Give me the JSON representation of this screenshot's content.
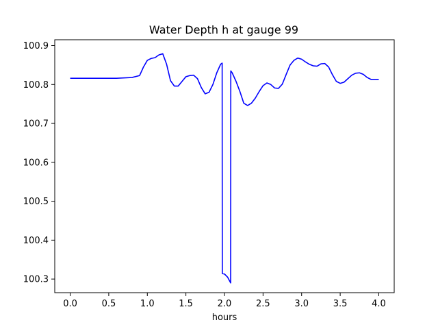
{
  "chart_data": {
    "type": "line",
    "title": "Water Depth h at gauge 99",
    "xlabel": "hours",
    "ylabel": "",
    "xlim": [
      -0.2,
      4.2
    ],
    "ylim": [
      100.265,
      100.915
    ],
    "xticks": [
      0.0,
      0.5,
      1.0,
      1.5,
      2.0,
      2.5,
      3.0,
      3.5,
      4.0
    ],
    "xtick_labels": [
      "0.0",
      "0.5",
      "1.0",
      "1.5",
      "2.0",
      "2.5",
      "3.0",
      "3.5",
      "4.0"
    ],
    "yticks": [
      100.3,
      100.4,
      100.5,
      100.6,
      100.7,
      100.8,
      100.9
    ],
    "ytick_labels": [
      "100.3",
      "100.4",
      "100.5",
      "100.6",
      "100.7",
      "100.8",
      "100.9"
    ],
    "grid": false,
    "series": [
      {
        "color": "#0000ff",
        "x": [
          0.0,
          0.2,
          0.4,
          0.6,
          0.8,
          0.9,
          0.95,
          1.0,
          1.05,
          1.1,
          1.15,
          1.2,
          1.25,
          1.3,
          1.35,
          1.4,
          1.45,
          1.5,
          1.55,
          1.6,
          1.65,
          1.7,
          1.75,
          1.8,
          1.85,
          1.9,
          1.95,
          1.97,
          1.972,
          2.0,
          2.04,
          2.08,
          2.082,
          2.1,
          2.15,
          2.2,
          2.25,
          2.3,
          2.35,
          2.4,
          2.45,
          2.5,
          2.55,
          2.6,
          2.65,
          2.7,
          2.75,
          2.8,
          2.85,
          2.9,
          2.95,
          3.0,
          3.05,
          3.1,
          3.15,
          3.2,
          3.25,
          3.3,
          3.35,
          3.4,
          3.45,
          3.5,
          3.55,
          3.6,
          3.65,
          3.7,
          3.75,
          3.8,
          3.85,
          3.9,
          3.95,
          4.0
        ],
        "y": [
          100.816,
          100.816,
          100.816,
          100.816,
          100.818,
          100.823,
          100.845,
          100.862,
          100.867,
          100.869,
          100.876,
          100.879,
          100.852,
          100.81,
          100.796,
          100.796,
          100.808,
          100.82,
          100.823,
          100.824,
          100.815,
          100.792,
          100.776,
          100.78,
          100.8,
          100.83,
          100.852,
          100.855,
          100.314,
          100.313,
          100.305,
          100.29,
          100.835,
          100.83,
          100.808,
          100.782,
          100.752,
          100.746,
          100.752,
          100.765,
          100.782,
          100.797,
          100.804,
          100.8,
          100.791,
          100.79,
          100.801,
          100.826,
          100.85,
          100.862,
          100.868,
          100.865,
          100.858,
          100.852,
          100.848,
          100.847,
          100.853,
          100.854,
          100.845,
          100.825,
          100.808,
          100.803,
          100.806,
          100.815,
          100.824,
          100.829,
          100.83,
          100.826,
          100.818,
          100.813,
          100.813,
          100.813
        ]
      }
    ]
  }
}
